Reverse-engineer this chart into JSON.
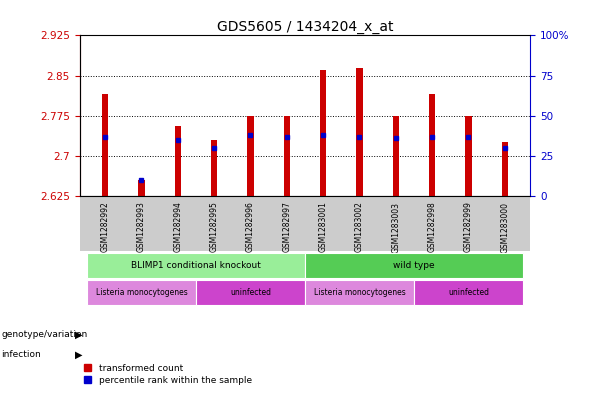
{
  "title": "GDS5605 / 1434204_x_at",
  "samples": [
    "GSM1282992",
    "GSM1282993",
    "GSM1282994",
    "GSM1282995",
    "GSM1282996",
    "GSM1282997",
    "GSM1283001",
    "GSM1283002",
    "GSM1283003",
    "GSM1282998",
    "GSM1282999",
    "GSM1283000"
  ],
  "transformed_count": [
    2.815,
    2.655,
    2.755,
    2.73,
    2.775,
    2.775,
    2.86,
    2.865,
    2.775,
    2.815,
    2.775,
    2.725
  ],
  "percentile_rank": [
    37,
    10,
    35,
    30,
    38,
    37,
    38,
    37,
    36,
    37,
    37,
    30
  ],
  "ymin": 2.625,
  "ymax": 2.925,
  "yticks": [
    2.625,
    2.7,
    2.775,
    2.85,
    2.925
  ],
  "right_yticks": [
    0,
    25,
    50,
    75,
    100
  ],
  "bar_color": "#cc0000",
  "dot_color": "#0000cc",
  "plot_bg": "#ffffff",
  "sample_label_bg": "#cccccc",
  "genotype_groups": [
    {
      "label": "BLIMP1 conditional knockout",
      "start": 0,
      "end": 6,
      "color": "#99ee99"
    },
    {
      "label": "wild type",
      "start": 6,
      "end": 12,
      "color": "#55cc55"
    }
  ],
  "infection_groups": [
    {
      "label": "Listeria monocytogenes",
      "start": 0,
      "end": 3,
      "color": "#dd88dd"
    },
    {
      "label": "uninfected",
      "start": 3,
      "end": 6,
      "color": "#cc44cc"
    },
    {
      "label": "Listeria monocytogenes",
      "start": 6,
      "end": 9,
      "color": "#dd88dd"
    },
    {
      "label": "uninfected",
      "start": 9,
      "end": 12,
      "color": "#cc44cc"
    }
  ],
  "legend_items": [
    {
      "label": "transformed count",
      "color": "#cc0000"
    },
    {
      "label": "percentile rank within the sample",
      "color": "#0000cc"
    }
  ],
  "left_label_color": "#cc0000",
  "right_label_color": "#0000cc",
  "bar_width": 0.18
}
